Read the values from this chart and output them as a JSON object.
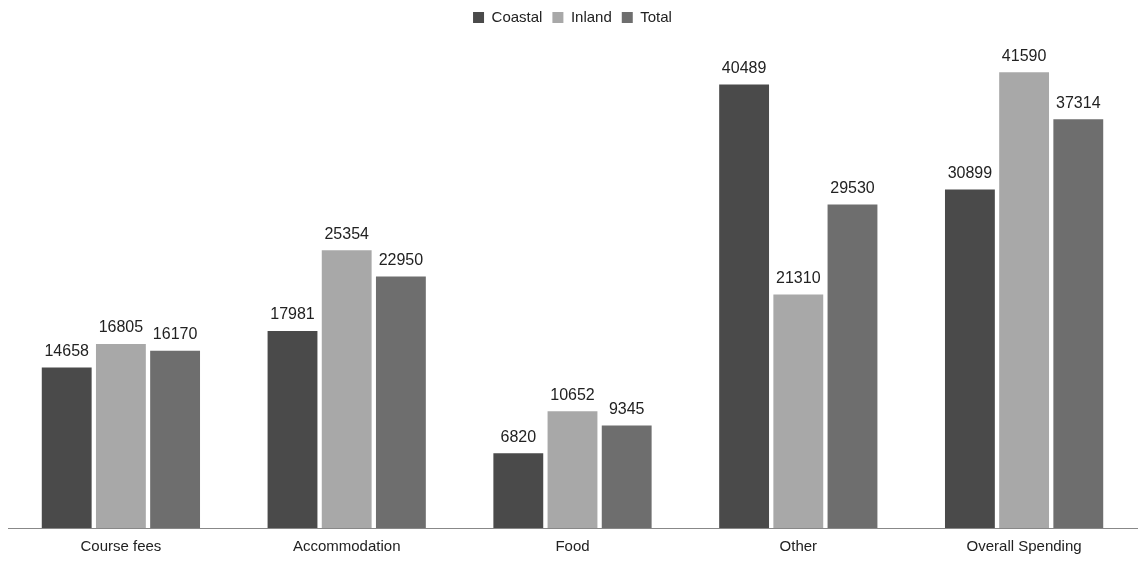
{
  "chart_data": {
    "type": "bar",
    "categories": [
      "Course fees",
      "Accommodation",
      "Food",
      "Other",
      "Overall Spending"
    ],
    "series": [
      {
        "name": "Coastal",
        "color": "#4a4a4a",
        "values": [
          14658,
          17981,
          6820,
          40489,
          30899
        ]
      },
      {
        "name": "Inland",
        "color": "#a8a8a8",
        "values": [
          16805,
          25354,
          10652,
          21310,
          41590
        ]
      },
      {
        "name": "Total",
        "color": "#6e6e6e",
        "values": [
          16170,
          22950,
          9345,
          29530,
          37314
        ]
      }
    ],
    "data_labels": true,
    "legend": "top",
    "grid": false
  }
}
